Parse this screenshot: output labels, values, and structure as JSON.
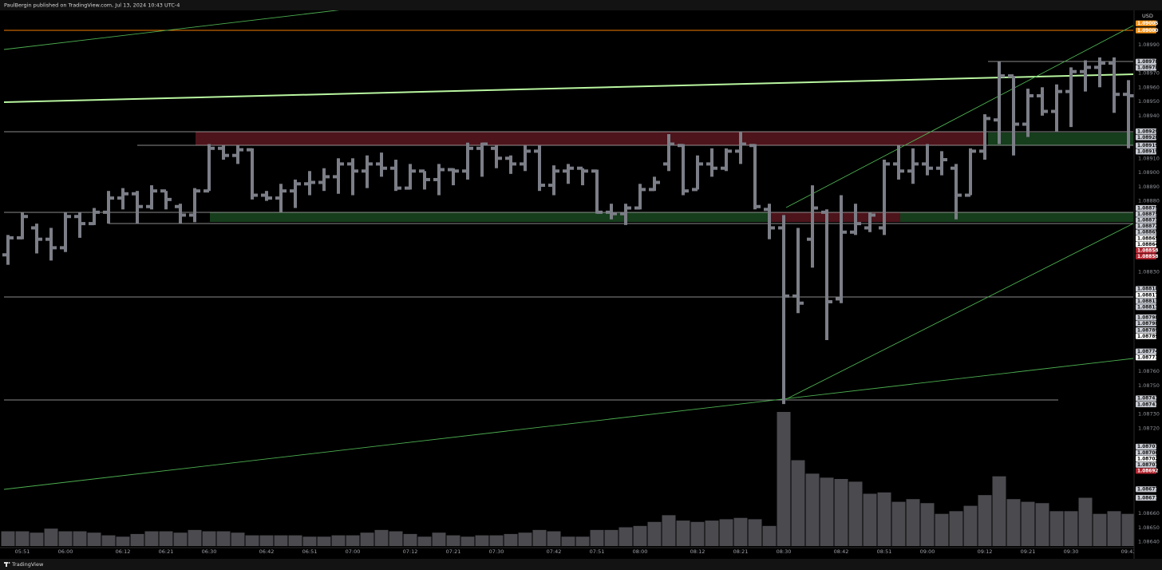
{
  "header": "PaulBergin published on TradingView.com, Jul 13, 2024 10:43 UTC-4",
  "footer": "TradingView",
  "chart_data": {
    "type": "ohlc",
    "currency": "USD",
    "categories": [
      null,
      "05:51",
      null,
      null,
      "06:00",
      null,
      null,
      null,
      "06:12",
      null,
      null,
      "06:21",
      null,
      null,
      "06:30",
      null,
      null,
      null,
      "06:42",
      null,
      null,
      "06:51",
      null,
      null,
      "07:00",
      null,
      null,
      null,
      "07:12",
      null,
      null,
      "07:21",
      null,
      null,
      "07:30",
      null,
      null,
      null,
      "07:42",
      null,
      null,
      "07:51",
      null,
      null,
      "08:00",
      null,
      null,
      null,
      "08:12",
      null,
      null,
      "08:21",
      null,
      null,
      "08:30",
      null,
      null,
      null,
      "08:42",
      null,
      null,
      "08:51",
      null,
      null,
      "09:00",
      null,
      null,
      null,
      "09:12",
      null,
      null,
      "09:21",
      null,
      null,
      "09:30",
      null,
      null,
      null,
      "09:42"
    ],
    "open": [
      1.08842,
      1.08854,
      1.08861,
      1.08853,
      1.08847,
      1.08869,
      1.08864,
      1.08872,
      1.08882,
      1.08885,
      1.08876,
      1.08887,
      1.08876,
      1.0887,
      1.08887,
      1.08917,
      1.08912,
      1.08916,
      1.08884,
      1.08882,
      1.08887,
      1.08892,
      1.08893,
      1.08897,
      1.08906,
      1.08901,
      1.08906,
      1.08903,
      1.08889,
      1.08901,
      1.08895,
      1.08902,
      1.08901,
      1.08917,
      1.08917,
      1.0891,
      1.08906,
      1.08915,
      1.08891,
      1.08901,
      1.08903,
      1.08901,
      1.08872,
      1.08871,
      1.08875,
      1.08888,
      1.08906,
      1.08919,
      1.08888,
      1.08906,
      1.08903,
      1.08915,
      1.08919,
      1.08874,
      1.08861,
      1.08813,
      1.08853,
      1.08872,
      1.08811,
      1.08858,
      1.08861,
      1.08861,
      1.08906,
      1.08901,
      1.08906,
      1.08903,
      1.08903,
      1.08884,
      1.08915,
      1.08937,
      1.08968,
      1.08934,
      1.08954,
      1.08943,
      1.08957,
      1.08971,
      1.08974,
      1.08977,
      1.08955
    ],
    "high": [
      1.08856,
      1.08872,
      1.08864,
      1.08861,
      1.08872,
      1.08872,
      1.08875,
      1.08887,
      1.08889,
      1.08887,
      1.08891,
      1.08887,
      1.08878,
      1.08889,
      1.0892,
      1.08919,
      1.08919,
      1.08917,
      1.08887,
      1.08892,
      1.08895,
      1.08901,
      1.08903,
      1.0891,
      1.0891,
      1.08912,
      1.08914,
      1.08909,
      1.08906,
      1.08901,
      1.08906,
      1.08903,
      1.08921,
      1.08921,
      1.08919,
      1.08912,
      1.08919,
      1.08919,
      1.08905,
      1.08906,
      1.08903,
      1.08902,
      1.08878,
      1.08878,
      1.08892,
      1.08897,
      1.08927,
      1.0892,
      1.08912,
      1.08917,
      1.08917,
      1.08929,
      1.0892,
      1.08878,
      1.0887,
      1.08861,
      1.08891,
      1.08874,
      1.08884,
      1.08878,
      1.08872,
      1.08909,
      1.08919,
      1.08917,
      1.0892,
      1.08915,
      1.08906,
      1.08917,
      1.08941,
      1.08978,
      1.08968,
      1.08959,
      1.0896,
      1.08962,
      1.08974,
      1.08979,
      1.08981,
      1.08981,
      1.08965
    ],
    "low": [
      1.08835,
      1.08853,
      1.08843,
      1.08838,
      1.08844,
      1.08854,
      1.08863,
      1.08864,
      1.08874,
      1.08864,
      1.08874,
      1.08874,
      1.08864,
      1.08865,
      1.08887,
      1.08909,
      1.08906,
      1.08881,
      1.0888,
      1.08872,
      1.08875,
      1.08884,
      1.08887,
      1.08885,
      1.08884,
      1.08889,
      1.08897,
      1.08887,
      1.08888,
      1.08888,
      1.08884,
      1.08891,
      1.08895,
      1.08897,
      1.08903,
      1.08899,
      1.08901,
      1.08887,
      1.08884,
      1.08892,
      1.08891,
      1.08871,
      1.08867,
      1.08863,
      1.08874,
      1.08887,
      1.08901,
      1.08884,
      1.08888,
      1.08897,
      1.08901,
      1.08906,
      1.08874,
      1.08853,
      1.08737,
      1.08801,
      1.08833,
      1.08782,
      1.08808,
      1.08856,
      1.08858,
      1.08856,
      1.08895,
      1.08892,
      1.08898,
      1.08898,
      1.08867,
      1.08884,
      1.08909,
      1.0892,
      1.08912,
      1.08925,
      1.0894,
      1.08929,
      1.08932,
      1.08957,
      1.0896,
      1.08942,
      1.08917
    ],
    "close": [
      1.08854,
      1.08869,
      1.08853,
      1.08847,
      1.08869,
      1.08864,
      1.08872,
      1.08882,
      1.08885,
      1.08876,
      1.08887,
      1.08881,
      1.0887,
      1.08887,
      1.08917,
      1.08912,
      1.08916,
      1.08884,
      1.08882,
      1.08887,
      1.08892,
      1.08893,
      1.08897,
      1.08906,
      1.08901,
      1.08906,
      1.08903,
      1.08889,
      1.08901,
      1.08895,
      1.08902,
      1.08901,
      1.08917,
      1.0892,
      1.0891,
      1.08906,
      1.08915,
      1.08891,
      1.08901,
      1.08903,
      1.08901,
      1.08872,
      1.08871,
      1.08875,
      1.08888,
      1.08893,
      1.0892,
      1.08887,
      1.08906,
      1.08903,
      1.08915,
      1.0892,
      1.08876,
      1.08861,
      1.08813,
      1.08808,
      1.08875,
      1.08809,
      1.08858,
      1.08864,
      1.0887,
      1.08906,
      1.08901,
      1.08906,
      1.08903,
      1.08909,
      1.08884,
      1.08915,
      1.08938,
      1.08968,
      1.08934,
      1.08954,
      1.08943,
      1.08957,
      1.08971,
      1.08974,
      1.08977,
      1.08955,
      1.08954
    ],
    "volume": [
      11,
      11,
      10,
      13,
      11,
      11,
      10,
      8,
      7,
      9,
      11,
      11,
      10,
      12,
      11,
      11,
      10,
      8,
      8,
      8,
      8,
      7,
      7,
      8,
      8,
      10,
      12,
      11,
      9,
      7,
      10,
      8,
      7,
      8,
      8,
      9,
      10,
      12,
      11,
      7,
      7,
      12,
      12,
      14,
      15,
      18,
      23,
      19,
      18,
      19,
      20,
      21,
      20,
      15,
      100,
      64,
      54,
      51,
      50,
      48,
      39,
      40,
      33,
      35,
      32,
      24,
      26,
      30,
      38,
      52,
      35,
      33,
      32,
      26,
      26,
      36,
      24,
      26,
      24
    ],
    "volume_lim": [
      0,
      100
    ],
    "bar_color": "#7c7e87",
    "volume_color": "#4a4a4f",
    "ylim": [
      1.08628,
      1.09013
    ],
    "yticks": [
      {
        "value": 1.0899,
        "label": "1.08990"
      },
      {
        "value": 1.0897,
        "label": "1.08970"
      },
      {
        "value": 1.0896,
        "label": "1.08960"
      },
      {
        "value": 1.0895,
        "label": "1.08950"
      },
      {
        "value": 1.0894,
        "label": "1.08940"
      },
      {
        "value": 1.0891,
        "label": "1.08910"
      },
      {
        "value": 1.089,
        "label": "1.08900"
      },
      {
        "value": 1.0889,
        "label": "1.08890"
      },
      {
        "value": 1.0888,
        "label": "1.08880"
      },
      {
        "value": 1.0883,
        "label": "1.08830"
      },
      {
        "value": 1.0876,
        "label": "1.08760"
      },
      {
        "value": 1.0875,
        "label": "1.08750"
      },
      {
        "value": 1.0873,
        "label": "1.08730"
      },
      {
        "value": 1.0872,
        "label": "1.08720"
      },
      {
        "value": 1.0866,
        "label": "1.08660"
      },
      {
        "value": 1.0865,
        "label": "1.08650"
      },
      {
        "value": 1.0864,
        "label": "1.08640"
      }
    ],
    "grid": false,
    "level_labels": [
      {
        "value": 1.09005,
        "style": "orange"
      },
      {
        "value": 1.09,
        "label": "1.09000",
        "style": "orange"
      },
      {
        "value": 1.08978,
        "style": "light"
      },
      {
        "value": 1.08978,
        "style": "light"
      },
      {
        "value": 1.08929,
        "style": "light"
      },
      {
        "value": 1.08928,
        "style": "light"
      },
      {
        "value": 1.08919,
        "style": "light"
      },
      {
        "value": 1.08919,
        "style": "light"
      },
      {
        "value": 1.08875,
        "style": "light"
      },
      {
        "value": 1.08875,
        "style": "light"
      },
      {
        "value": 1.08873,
        "style": "light"
      },
      {
        "value": 1.08872,
        "style": "light"
      },
      {
        "value": 1.08865,
        "style": "light"
      },
      {
        "value": 1.08865,
        "style": "white"
      },
      {
        "value": 1.08864,
        "style": "white"
      },
      {
        "value": 1.08858,
        "style": "red"
      },
      {
        "value": 1.08858,
        "style": "red"
      },
      {
        "value": 1.08818,
        "style": "light"
      },
      {
        "value": 1.08817,
        "style": "white"
      },
      {
        "value": 1.08813,
        "style": "light"
      },
      {
        "value": 1.08813,
        "style": "light"
      },
      {
        "value": 1.08798,
        "style": "light"
      },
      {
        "value": 1.08798,
        "style": "light"
      },
      {
        "value": 1.08789,
        "style": "light"
      },
      {
        "value": 1.08789,
        "style": "white"
      },
      {
        "value": 1.08774,
        "style": "light"
      },
      {
        "value": 1.08773,
        "style": "white"
      },
      {
        "value": 1.08741,
        "style": "light"
      },
      {
        "value": 1.08741,
        "style": "light"
      },
      {
        "value": 1.08707,
        "style": "light"
      },
      {
        "value": 1.08706,
        "style": "light"
      },
      {
        "value": 1.08702,
        "style": "white"
      },
      {
        "value": 1.08701,
        "style": "light"
      },
      {
        "value": 1.08692,
        "style": "red"
      },
      {
        "value": 1.08677,
        "style": "light"
      },
      {
        "value": 1.08671,
        "style": "light"
      }
    ],
    "level_styles": {
      "orange": {
        "bg": "#f7931a",
        "fg": "#ffffff"
      },
      "light": {
        "bg": "#c9ccd4",
        "fg": "#111111"
      },
      "white": {
        "bg": "#ffffff",
        "fg": "#000000"
      },
      "red": {
        "bg": "#b3242f",
        "fg": "#ffffff"
      }
    }
  }
}
